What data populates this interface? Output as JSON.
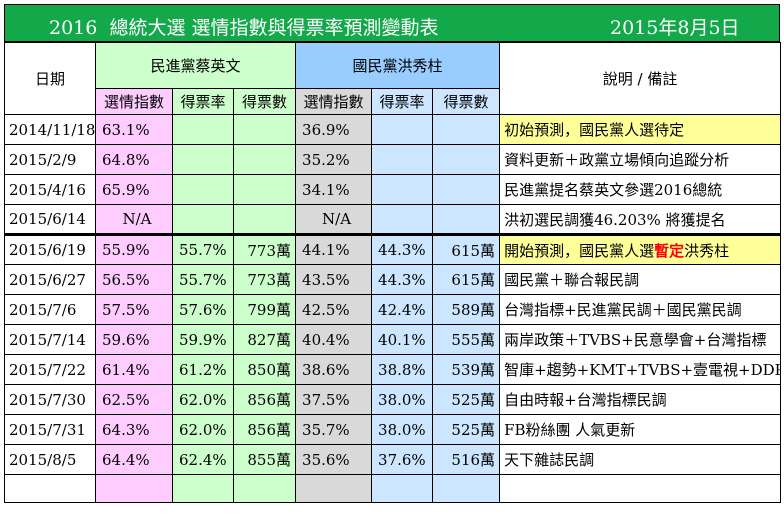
{
  "title": {
    "year": "2016",
    "text": "總統大選  選情指數與得票率預測變動表",
    "date": "2015年8月5日"
  },
  "headers": {
    "date": "日期",
    "dpp": "民進黨蔡英文",
    "kmt": "國民黨洪秀柱",
    "notes": "說明 / 備註",
    "index": "選情指數",
    "rate": "得票率",
    "votes": "得票數"
  },
  "rows": [
    {
      "date": "2014/11/18",
      "dpp_index": "63.1%",
      "dpp_rate": "",
      "dpp_votes": "",
      "kmt_index": "36.9%",
      "kmt_rate": "",
      "kmt_votes": "",
      "note_pre": "初始預測，國民黨人選待定",
      "note_red": "",
      "note_post": "",
      "highlight": true
    },
    {
      "date": "2015/2/9",
      "dpp_index": "64.8%",
      "dpp_rate": "",
      "dpp_votes": "",
      "kmt_index": "35.2%",
      "kmt_rate": "",
      "kmt_votes": "",
      "note_pre": "資料更新＋政黨立場傾向追蹤分析",
      "note_red": "",
      "note_post": "",
      "highlight": false
    },
    {
      "date": "2015/4/16",
      "dpp_index": "65.9%",
      "dpp_rate": "",
      "dpp_votes": "",
      "kmt_index": "34.1%",
      "kmt_rate": "",
      "kmt_votes": "",
      "note_pre": "民進黨提名蔡英文參選2016總統",
      "note_red": "",
      "note_post": "",
      "highlight": false
    },
    {
      "date": "2015/6/14",
      "dpp_index": "N/A",
      "dpp_rate": "",
      "dpp_votes": "",
      "kmt_index": "N/A",
      "kmt_rate": "",
      "kmt_votes": "",
      "note_pre": "洪初選民調獲46.203% 將獲提名",
      "note_red": "",
      "note_post": "",
      "highlight": false,
      "na": true
    },
    {
      "date": "2015/6/19",
      "dpp_index": "55.9%",
      "dpp_rate": "55.7%",
      "dpp_votes": "773萬",
      "kmt_index": "44.1%",
      "kmt_rate": "44.3%",
      "kmt_votes": "615萬",
      "note_pre": "開始預測，國民黨人選",
      "note_red": "暫定",
      "note_post": "洪秀柱",
      "highlight": true,
      "thick": true
    },
    {
      "date": "2015/6/27",
      "dpp_index": "56.5%",
      "dpp_rate": "55.7%",
      "dpp_votes": "773萬",
      "kmt_index": "43.5%",
      "kmt_rate": "44.3%",
      "kmt_votes": "615萬",
      "note_pre": "國民黨＋聯合報民調",
      "note_red": "",
      "note_post": "",
      "highlight": false
    },
    {
      "date": "2015/7/6",
      "dpp_index": "57.5%",
      "dpp_rate": "57.6%",
      "dpp_votes": "799萬",
      "kmt_index": "42.5%",
      "kmt_rate": "42.4%",
      "kmt_votes": "589萬",
      "note_pre": "台灣指標+民進黨民調＋國民黨民調",
      "note_red": "",
      "note_post": "",
      "highlight": false
    },
    {
      "date": "2015/7/14",
      "dpp_index": "59.6%",
      "dpp_rate": "59.9%",
      "dpp_votes": "827萬",
      "kmt_index": "40.4%",
      "kmt_rate": "40.1%",
      "kmt_votes": "555萬",
      "note_pre": "兩岸政策＋TVBS+民意學會+台灣指標",
      "note_red": "",
      "note_post": "",
      "highlight": false
    },
    {
      "date": "2015/7/22",
      "dpp_index": "61.4%",
      "dpp_rate": "61.2%",
      "dpp_votes": "850萬",
      "kmt_index": "38.6%",
      "kmt_rate": "38.8%",
      "kmt_votes": "539萬",
      "note_pre": "智庫+趨勢+KMT+TVBS+壹電視+DDP",
      "note_red": "",
      "note_post": "",
      "highlight": false
    },
    {
      "date": "2015/7/30",
      "dpp_index": "62.5%",
      "dpp_rate": "62.0%",
      "dpp_votes": "856萬",
      "kmt_index": "37.5%",
      "kmt_rate": "38.0%",
      "kmt_votes": "525萬",
      "note_pre": "自由時報+台灣指標民調",
      "note_red": "",
      "note_post": "",
      "highlight": false
    },
    {
      "date": "2015/7/31",
      "dpp_index": "64.3%",
      "dpp_rate": "62.0%",
      "dpp_votes": "856萬",
      "kmt_index": "35.7%",
      "kmt_rate": "38.0%",
      "kmt_votes": "525萬",
      "note_pre": "FB粉絲團 人氣更新",
      "note_red": "",
      "note_post": "",
      "highlight": false
    },
    {
      "date": "2015/8/5",
      "dpp_index": "64.4%",
      "dpp_rate": "62.4%",
      "dpp_votes": "855萬",
      "kmt_index": "35.6%",
      "kmt_rate": "37.6%",
      "kmt_votes": "516萬",
      "note_pre": "天下雜誌民調",
      "note_red": "",
      "note_post": "",
      "highlight": false
    }
  ]
}
